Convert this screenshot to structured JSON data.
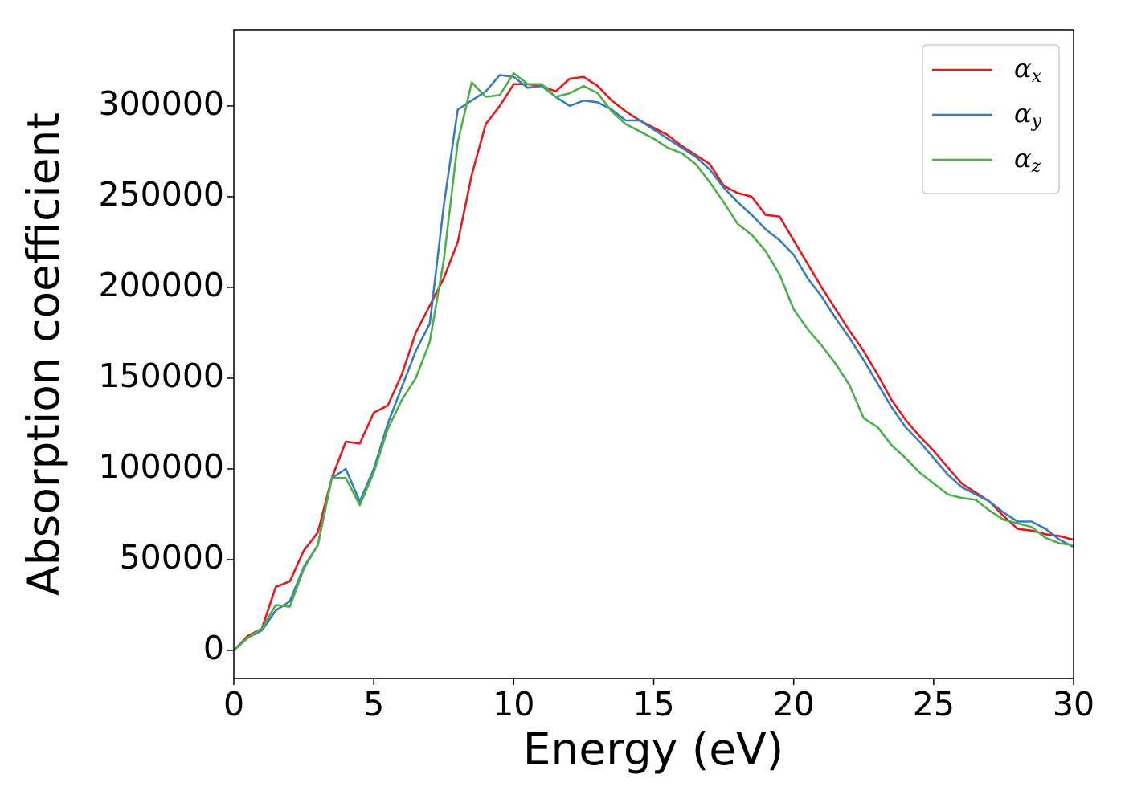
{
  "chart_data": {
    "type": "line",
    "xlabel": "Energy (eV)",
    "ylabel": "Absorption coefficient",
    "x": [
      0,
      0.5,
      1,
      1.5,
      2,
      2.5,
      3,
      3.5,
      4,
      4.5,
      5,
      5.5,
      6,
      6.5,
      7,
      7.5,
      8,
      8.5,
      9,
      9.5,
      10,
      10.5,
      11,
      11.5,
      12,
      12.5,
      13,
      13.5,
      14,
      14.5,
      15,
      15.5,
      16,
      16.5,
      17,
      17.5,
      18,
      18.5,
      19,
      19.5,
      20,
      20.5,
      21,
      21.5,
      22,
      22.5,
      23,
      23.5,
      24,
      24.5,
      25,
      25.5,
      26,
      26.5,
      27,
      27.5,
      28,
      28.5,
      29,
      29.5,
      30
    ],
    "series": [
      {
        "name": "αx",
        "color": "#e41a1c",
        "values": [
          0,
          8000,
          12000,
          35000,
          38000,
          55000,
          65000,
          95000,
          115000,
          114000,
          131000,
          135000,
          152000,
          175000,
          190000,
          205000,
          225000,
          262000,
          290000,
          300000,
          312000,
          312000,
          311000,
          308000,
          315000,
          316000,
          311000,
          303000,
          297000,
          292000,
          288000,
          284000,
          278000,
          273000,
          268000,
          256000,
          252000,
          250000,
          240000,
          239000,
          226000,
          213000,
          200000,
          188000,
          176000,
          165000,
          152000,
          138000,
          127000,
          118000,
          110000,
          101000,
          92000,
          87000,
          82000,
          74000,
          67000,
          66000,
          64000,
          63000,
          61000
        ]
      },
      {
        "name": "αy",
        "color": "#377eb8",
        "values": [
          0,
          7000,
          11000,
          22000,
          27000,
          46000,
          58000,
          95000,
          100000,
          82000,
          100000,
          125000,
          145000,
          165000,
          180000,
          245000,
          298000,
          303000,
          308000,
          317000,
          316000,
          310000,
          311000,
          305000,
          300000,
          303000,
          302000,
          298000,
          292000,
          292000,
          287000,
          282000,
          277000,
          272000,
          265000,
          255000,
          247000,
          240000,
          232000,
          226000,
          218000,
          205000,
          195000,
          183000,
          172000,
          160000,
          147000,
          134000,
          123000,
          115000,
          106000,
          97000,
          90000,
          86000,
          82000,
          76000,
          71000,
          71000,
          67000,
          61000,
          57000
        ]
      },
      {
        "name": "αz",
        "color": "#4daf4a",
        "values": [
          0,
          7000,
          12000,
          25000,
          24000,
          45000,
          58000,
          95000,
          95000,
          80000,
          98000,
          122000,
          138000,
          150000,
          170000,
          215000,
          280000,
          313000,
          305000,
          306000,
          318000,
          312000,
          312000,
          305000,
          307000,
          311000,
          307000,
          297000,
          290000,
          286000,
          282000,
          277000,
          274000,
          268000,
          258000,
          247000,
          235000,
          229000,
          220000,
          207000,
          188000,
          177000,
          168000,
          158000,
          146000,
          128000,
          123000,
          113000,
          106000,
          98000,
          92000,
          86000,
          84000,
          83000,
          77000,
          72000,
          70000,
          68000,
          62000,
          59000,
          58000
        ]
      }
    ],
    "xlim": [
      0,
      30
    ],
    "xticks": [
      0,
      5,
      10,
      15,
      20,
      25,
      30
    ],
    "ylim": [
      -15500,
      342000
    ],
    "yticks": [
      0,
      50000,
      100000,
      150000,
      200000,
      250000,
      300000
    ],
    "grid": false,
    "legend": "upper right"
  }
}
